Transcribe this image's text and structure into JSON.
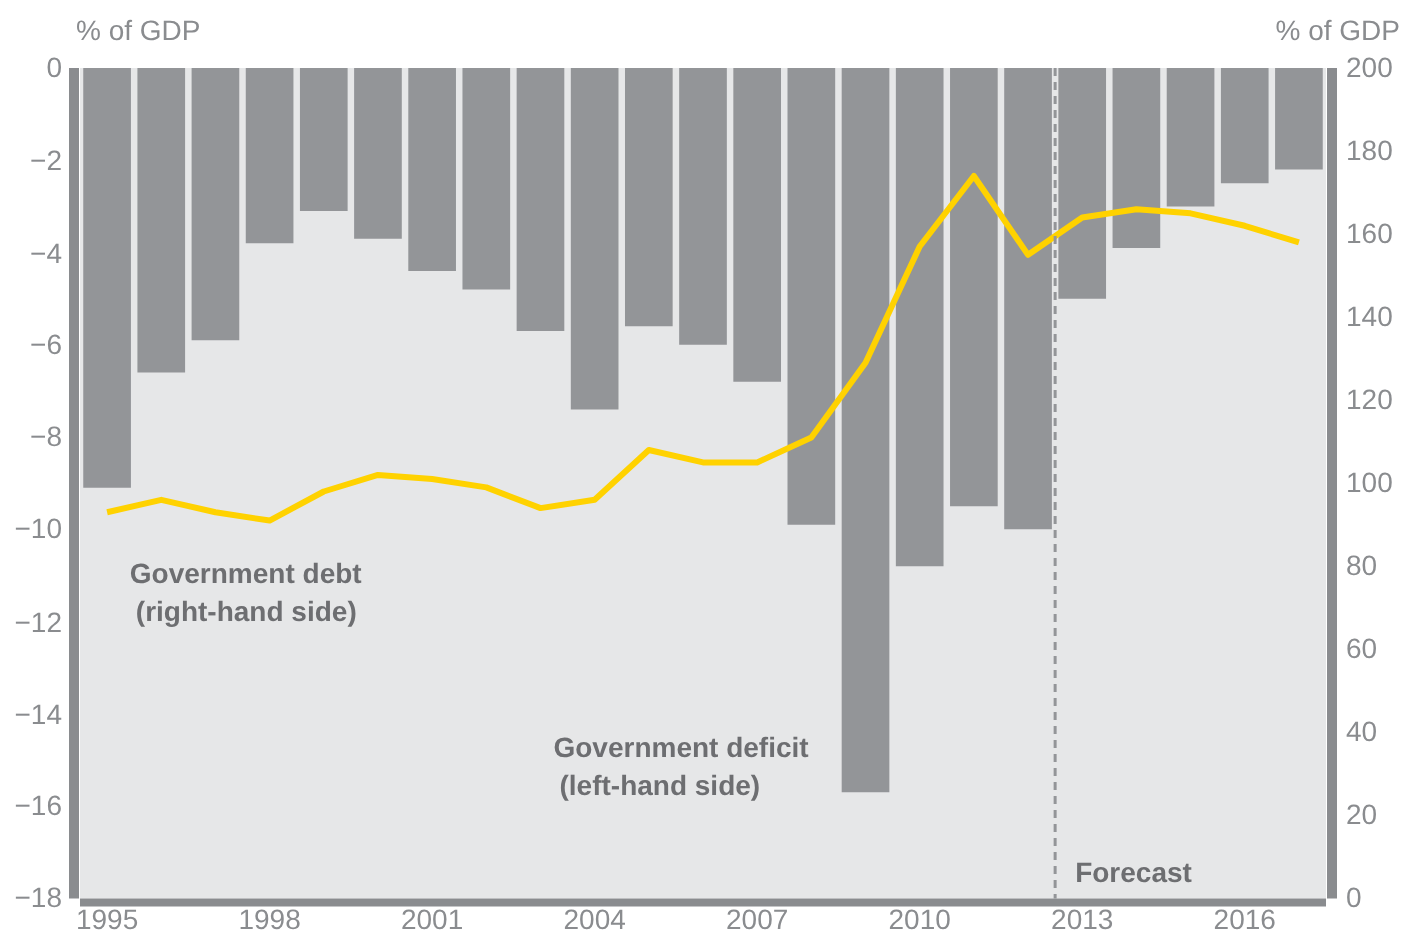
{
  "chart_data": {
    "type": "bar",
    "ylabel": "% of GDP",
    "y2label": "% of GDP",
    "x": [
      1995,
      1996,
      1997,
      1998,
      1999,
      2000,
      2001,
      2002,
      2003,
      2004,
      2005,
      2006,
      2007,
      2008,
      2009,
      2010,
      2011,
      2012,
      2013,
      2014,
      2015,
      2016,
      2017
    ],
    "xlim": [
      1994.5,
      2017.5
    ],
    "xticks": [
      1995,
      1998,
      2001,
      2004,
      2007,
      2010,
      2013,
      2016
    ],
    "ylim": [
      -18,
      0
    ],
    "yticks": [
      -18,
      -16,
      -14,
      -12,
      -10,
      -8,
      -6,
      -4,
      -2,
      0
    ],
    "y2lim": [
      0,
      200
    ],
    "y2ticks": [
      0,
      20,
      40,
      60,
      80,
      100,
      120,
      140,
      160,
      180,
      200
    ],
    "series": [
      {
        "name": "Government deficit (left-hand side)",
        "color": "#939598",
        "values": [
          -9.1,
          -6.6,
          -5.9,
          -3.8,
          -3.1,
          -3.7,
          -4.4,
          -4.8,
          -5.7,
          -7.4,
          -5.6,
          -6.0,
          -6.8,
          -9.9,
          -15.7,
          -10.8,
          -9.5,
          -10.0,
          -5.0,
          -3.9,
          -3.0,
          -2.5,
          -2.2
        ]
      },
      {
        "name": "Government debt (right-hand side)",
        "type": "line",
        "axis": "y2",
        "color": "#ffd200",
        "values": [
          93,
          96,
          93,
          91,
          98,
          102,
          101,
          99,
          94,
          96,
          108,
          105,
          105,
          111,
          129,
          157,
          174,
          155,
          164,
          166,
          165,
          162,
          158
        ]
      }
    ],
    "ref_lines": [
      {
        "axis": "x",
        "value": 2012.5,
        "label": "Forecast",
        "color": "#939598",
        "line_style": "dashed"
      }
    ],
    "grid": false,
    "legend": false,
    "marker": "none"
  }
}
